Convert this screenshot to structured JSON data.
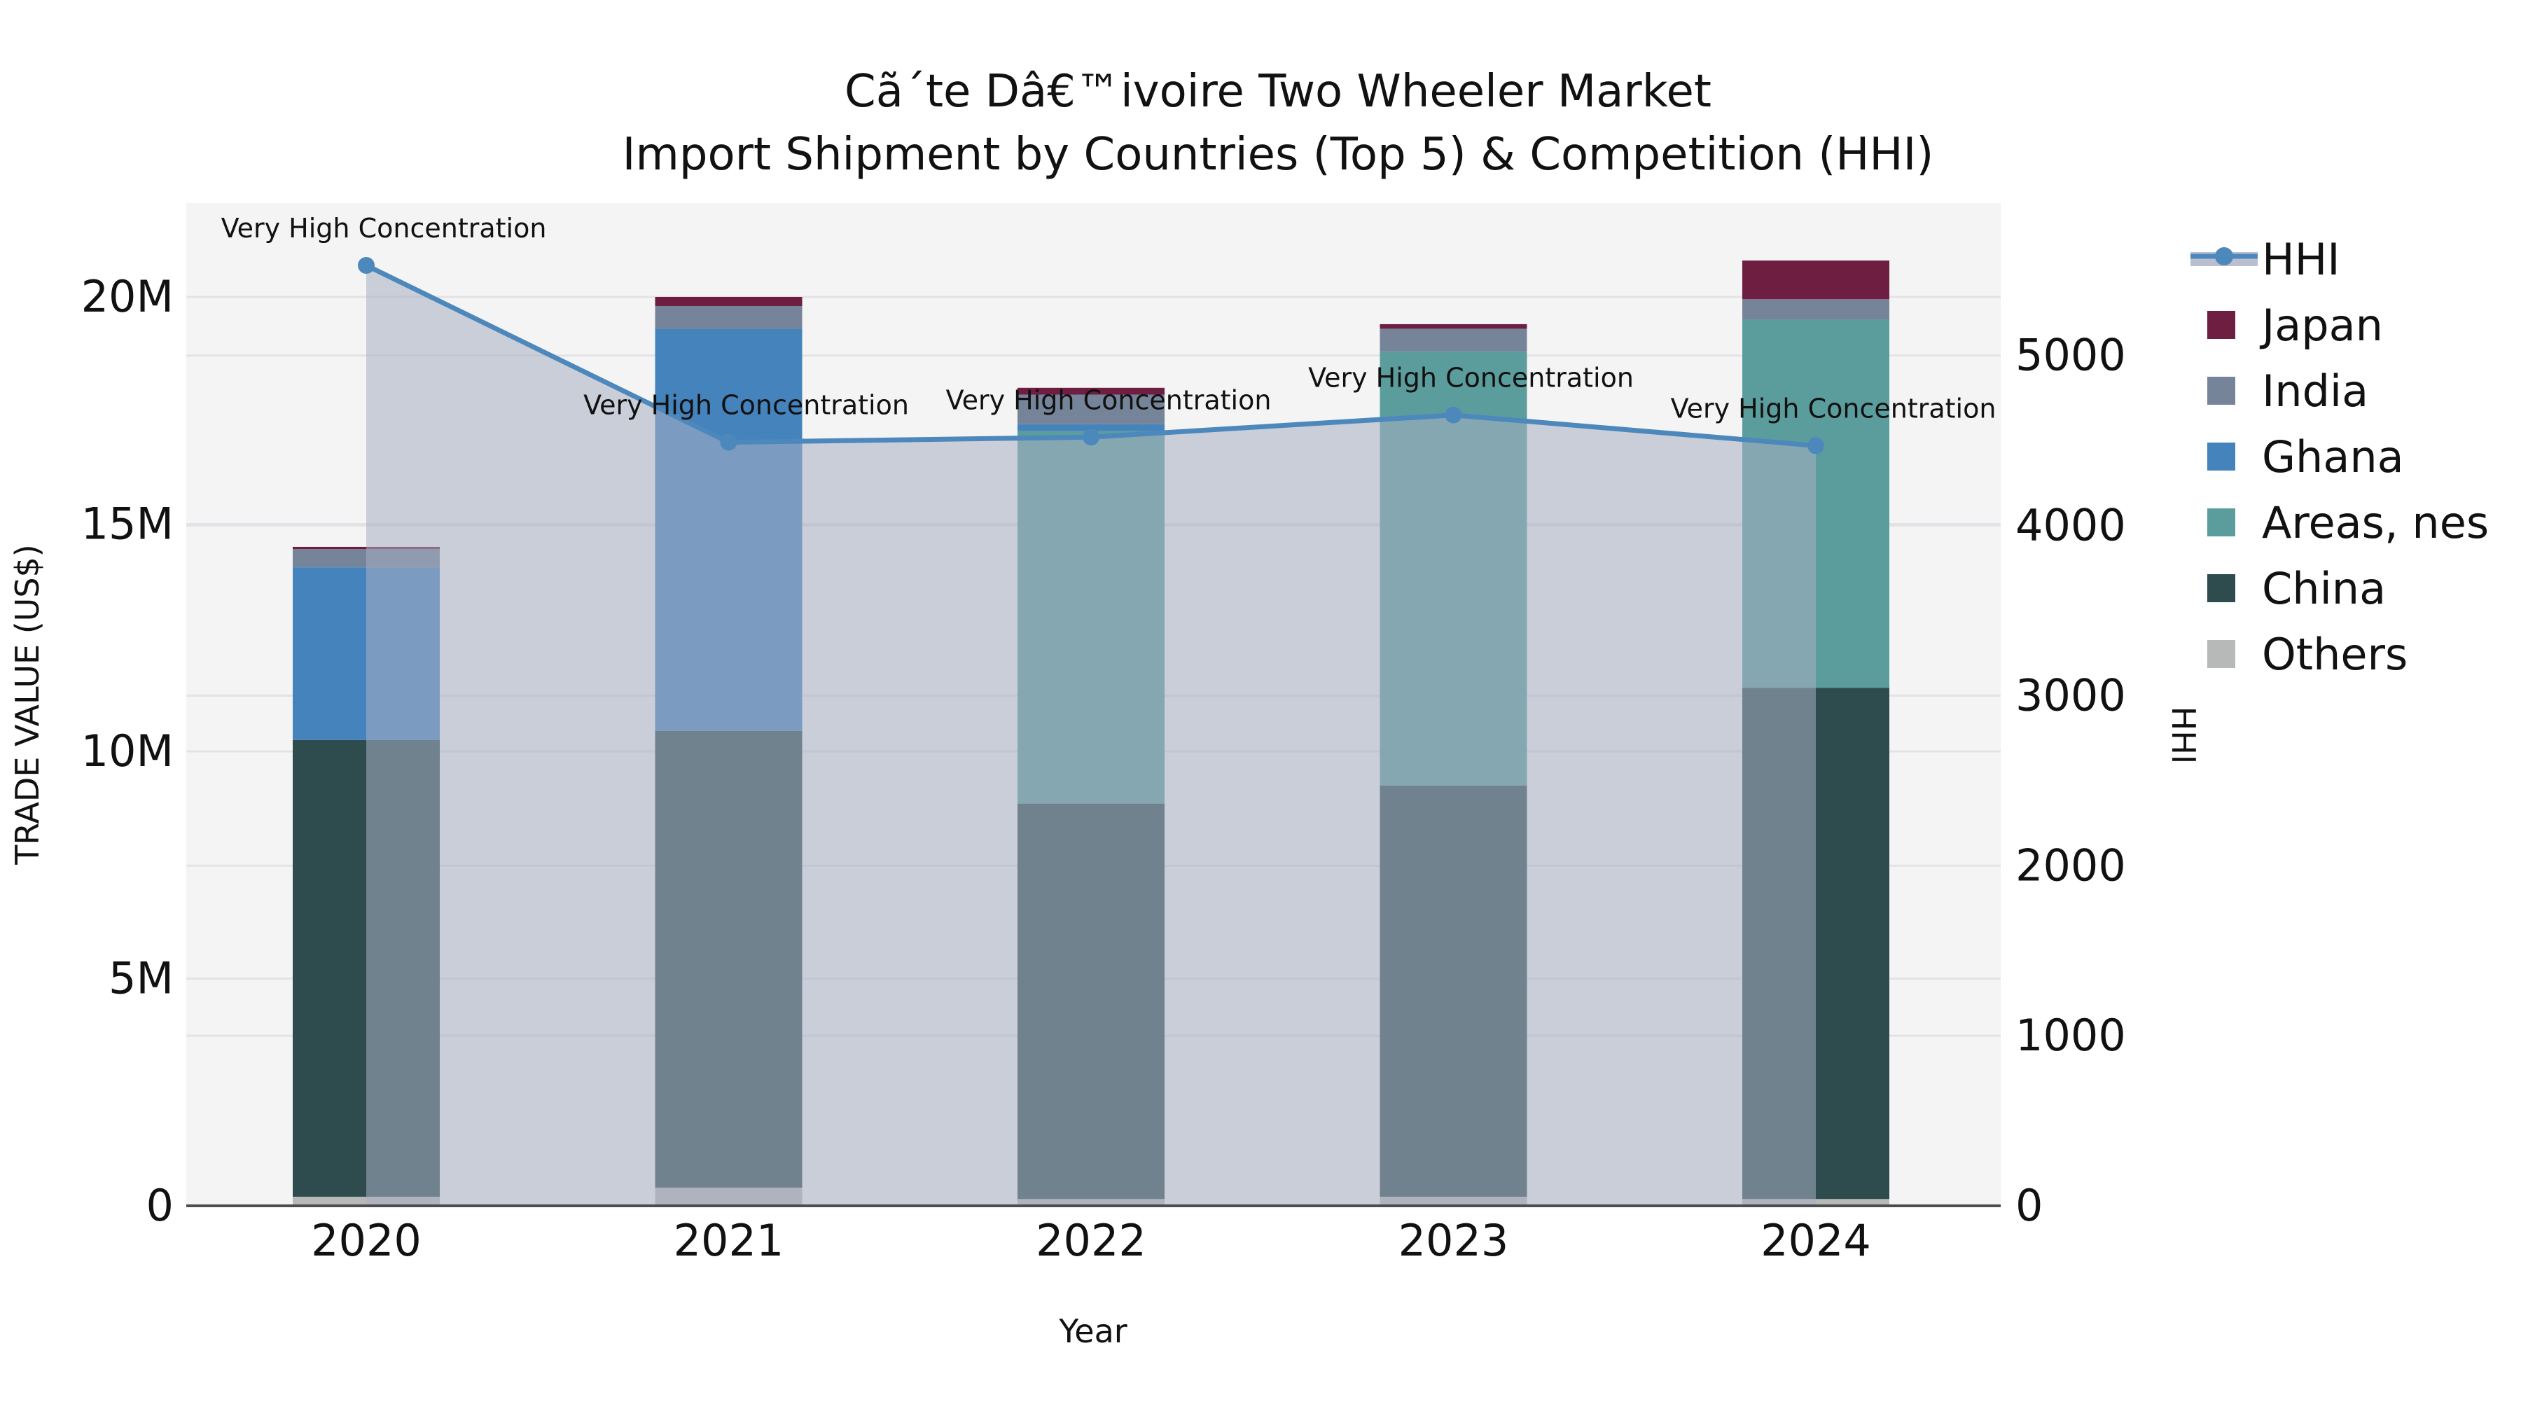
{
  "title": {
    "line1": "Cã´te Dâ€™ivoire Two Wheeler Market",
    "line2": "Import Shipment by Countries (Top 5) & Competition (HHI)"
  },
  "legend": {
    "items": [
      {
        "label": "HHI",
        "type": "line",
        "color": "#4d88bc",
        "band_color": "#a7afc3"
      },
      {
        "label": "Japan",
        "type": "patch",
        "color": "#6e1e41"
      },
      {
        "label": "India",
        "type": "patch",
        "color": "#76849a"
      },
      {
        "label": "Ghana",
        "type": "patch",
        "color": "#4583bc"
      },
      {
        "label": "Areas, nes",
        "type": "patch",
        "color": "#5b9d9d"
      },
      {
        "label": "China",
        "type": "patch",
        "color": "#2e4c4e"
      },
      {
        "label": "Others",
        "type": "patch",
        "color": "#b7b9b8"
      }
    ]
  },
  "chart_data": {
    "type": "bar",
    "stacked": true,
    "categories": [
      "2020",
      "2021",
      "2022",
      "2023",
      "2024"
    ],
    "value_unit": "M US$",
    "series": [
      {
        "name": "Others",
        "color": "#b7b9b8",
        "values": [
          0.2,
          0.4,
          0.15,
          0.2,
          0.15
        ]
      },
      {
        "name": "China",
        "color": "#2e4c4e",
        "values": [
          10.05,
          10.05,
          8.7,
          9.05,
          11.25
        ]
      },
      {
        "name": "Areas, nes",
        "color": "#5b9d9d",
        "values": [
          0,
          0,
          8.2,
          9.55,
          8.1
        ]
      },
      {
        "name": "Ghana",
        "color": "#4583bc",
        "values": [
          3.8,
          8.85,
          0.15,
          0,
          0
        ]
      },
      {
        "name": "India",
        "color": "#76849a",
        "values": [
          0.4,
          0.5,
          0.65,
          0.5,
          0.45
        ]
      },
      {
        "name": "Japan",
        "color": "#6e1e41",
        "values": [
          0.05,
          0.2,
          0.15,
          0.1,
          0.85
        ]
      }
    ],
    "bar_totals": [
      14.5,
      20.0,
      18.0,
      19.4,
      20.8
    ],
    "line_overlay": {
      "name": "HHI",
      "axis": "right",
      "color": "#4d88bc",
      "fill_color": "#a7afc3",
      "fill_opacity": 0.55,
      "values": [
        5530,
        4490,
        4520,
        4650,
        4470
      ]
    },
    "annotations": [
      "Very High Concentration",
      "Very High Concentration",
      "Very High Concentration",
      "Very High Concentration",
      "Very High Concentration"
    ],
    "xlabel": "Year",
    "ylabel_left": "TRADE VALUE (US$)",
    "ylabel_right": "HHI",
    "yticks_left": {
      "labels": [
        "0",
        "5M",
        "10M",
        "15M",
        "20M"
      ],
      "values": [
        0,
        5,
        10,
        15,
        20
      ]
    },
    "yticks_right": {
      "labels": [
        "0",
        "1000",
        "2000",
        "3000",
        "4000",
        "5000"
      ],
      "values": [
        0,
        1000,
        2000,
        3000,
        4000,
        5000
      ]
    },
    "ylim_left": [
      0,
      22.06
    ],
    "ylim_right": [
      0,
      5900
    ],
    "grid": true,
    "legend_position": "right",
    "plot_bg_color": "#f4f4f4",
    "grid_color": "#e3e3e7",
    "axis_line_color": "#4d4d4d"
  }
}
